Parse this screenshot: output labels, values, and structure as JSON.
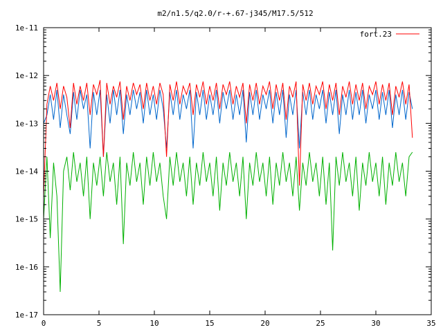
{
  "chart_data": {
    "type": "line",
    "title": "m2/n1.5/q2.0/r-+.67-j345/M17.5/512",
    "xlabel": "",
    "ylabel": "",
    "xlim": [
      0,
      35
    ],
    "ylim": [
      1e-17,
      1e-11
    ],
    "y_scale": "log",
    "x_ticks": [
      0,
      5,
      10,
      15,
      20,
      25,
      30,
      35
    ],
    "x_tick_labels": [
      "0",
      "5",
      "10",
      "15",
      "20",
      "25",
      "30",
      "35"
    ],
    "y_ticks": [
      1e-17,
      1e-16,
      1e-15,
      1e-14,
      1e-13,
      1e-12,
      1e-11
    ],
    "y_tick_labels": [
      "1e-17",
      "1e-16",
      "1e-15",
      "1e-14",
      "1e-13",
      "1e-12",
      "1e-11"
    ],
    "grid": false,
    "legend_position": "top-right",
    "series": [
      {
        "name": "fort.23",
        "color": "#ff0000",
        "x": [
          0.0,
          0.3,
          0.6,
          0.9,
          1.2,
          1.5,
          1.8,
          2.1,
          2.4,
          2.7,
          3.0,
          3.3,
          3.6,
          3.9,
          4.2,
          4.5,
          4.8,
          5.1,
          5.4,
          5.7,
          6.0,
          6.3,
          6.6,
          6.9,
          7.2,
          7.5,
          7.8,
          8.1,
          8.4,
          8.7,
          9.0,
          9.3,
          9.6,
          9.9,
          10.2,
          10.5,
          10.8,
          11.1,
          11.4,
          11.7,
          12.0,
          12.3,
          12.6,
          12.9,
          13.2,
          13.5,
          13.8,
          14.1,
          14.4,
          14.7,
          15.0,
          15.3,
          15.6,
          15.9,
          16.2,
          16.5,
          16.8,
          17.1,
          17.4,
          17.7,
          18.0,
          18.3,
          18.6,
          18.9,
          19.2,
          19.5,
          19.8,
          20.1,
          20.4,
          20.7,
          21.0,
          21.3,
          21.6,
          21.9,
          22.2,
          22.5,
          22.8,
          23.1,
          23.4,
          23.7,
          24.0,
          24.3,
          24.6,
          24.9,
          25.2,
          25.5,
          25.8,
          26.1,
          26.4,
          26.7,
          27.0,
          27.3,
          27.6,
          27.9,
          28.2,
          28.5,
          28.8,
          29.1,
          29.4,
          29.7,
          30.0,
          30.3,
          30.6,
          30.9,
          31.2,
          31.5,
          31.8,
          32.1,
          32.4,
          32.7,
          33.0,
          33.3
        ],
        "y": [
          3e-15,
          2.5e-13,
          6e-13,
          3e-13,
          7e-13,
          2e-13,
          6e-13,
          3.5e-13,
          8e-14,
          7e-13,
          2.5e-13,
          6e-13,
          3e-13,
          7e-13,
          1.5e-13,
          6.5e-13,
          4e-13,
          8e-13,
          2e-14,
          7e-13,
          2.5e-13,
          6e-13,
          3.5e-13,
          7.5e-13,
          1.2e-13,
          6e-13,
          3e-13,
          7e-13,
          4e-13,
          6.5e-13,
          2e-13,
          7e-13,
          3e-13,
          6e-13,
          2.5e-13,
          7e-13,
          4e-13,
          2e-14,
          6.5e-13,
          3e-13,
          7.5e-13,
          2.5e-13,
          6e-13,
          4e-13,
          7e-13,
          1.5e-13,
          6.5e-13,
          3.5e-13,
          7.5e-13,
          2.5e-13,
          6e-13,
          3e-13,
          7e-13,
          2e-13,
          6.5e-13,
          4e-13,
          7.5e-13,
          2.5e-13,
          6e-13,
          3.5e-13,
          7e-13,
          1e-13,
          6.5e-13,
          3e-13,
          7e-13,
          2.5e-13,
          6e-13,
          4e-13,
          7.5e-13,
          2e-13,
          6.5e-13,
          3e-13,
          7e-13,
          1.2e-13,
          6e-13,
          3.5e-13,
          7.5e-13,
          5e-15,
          6.5e-13,
          3e-13,
          7e-13,
          2.5e-13,
          6e-13,
          4e-13,
          7.5e-13,
          2e-13,
          6.5e-13,
          3e-13,
          7e-13,
          1.5e-13,
          6e-13,
          3.5e-13,
          7.5e-13,
          2.5e-13,
          6.5e-13,
          3e-13,
          7e-13,
          2e-13,
          6e-13,
          4e-13,
          7.5e-13,
          2.5e-13,
          6.5e-13,
          3e-13,
          7e-13,
          1.5e-13,
          6e-13,
          3.5e-13,
          7.5e-13,
          2.5e-13,
          6.5e-13,
          5e-14
        ]
      },
      {
        "color": "#0066cc",
        "x": [
          0.0,
          0.3,
          0.6,
          0.9,
          1.2,
          1.5,
          1.8,
          2.1,
          2.4,
          2.7,
          3.0,
          3.3,
          3.6,
          3.9,
          4.2,
          4.5,
          4.8,
          5.1,
          5.4,
          5.7,
          6.0,
          6.3,
          6.6,
          6.9,
          7.2,
          7.5,
          7.8,
          8.1,
          8.4,
          8.7,
          9.0,
          9.3,
          9.6,
          9.9,
          10.2,
          10.5,
          10.8,
          11.1,
          11.4,
          11.7,
          12.0,
          12.3,
          12.6,
          12.9,
          13.2,
          13.5,
          13.8,
          14.1,
          14.4,
          14.7,
          15.0,
          15.3,
          15.6,
          15.9,
          16.2,
          16.5,
          16.8,
          17.1,
          17.4,
          17.7,
          18.0,
          18.3,
          18.6,
          18.9,
          19.2,
          19.5,
          19.8,
          20.1,
          20.4,
          20.7,
          21.0,
          21.3,
          21.6,
          21.9,
          22.2,
          22.5,
          22.8,
          23.1,
          23.4,
          23.7,
          24.0,
          24.3,
          24.6,
          24.9,
          25.2,
          25.5,
          25.8,
          26.1,
          26.4,
          26.7,
          27.0,
          27.3,
          27.6,
          27.9,
          28.2,
          28.5,
          28.8,
          29.1,
          29.4,
          29.7,
          30.0,
          30.3,
          30.6,
          30.9,
          31.2,
          31.5,
          31.8,
          32.1,
          32.4,
          32.7,
          33.0,
          33.3
        ],
        "y": [
          1e-13,
          1.5e-13,
          4e-13,
          1.2e-13,
          5e-13,
          8e-14,
          4e-13,
          1.5e-13,
          6e-14,
          4.5e-13,
          1.2e-13,
          5e-13,
          2e-13,
          4e-13,
          3e-14,
          4.5e-13,
          1.5e-13,
          5e-13,
          2e-14,
          4e-13,
          1e-13,
          5e-13,
          1.5e-13,
          5e-13,
          6e-14,
          4e-13,
          1.5e-13,
          5e-13,
          2e-13,
          4.5e-13,
          1e-13,
          5e-13,
          1.5e-13,
          4e-13,
          1.2e-13,
          5e-13,
          2e-13,
          3e-14,
          4.5e-13,
          1.5e-13,
          5e-13,
          1.2e-13,
          4e-13,
          2e-13,
          5e-13,
          3e-14,
          4.5e-13,
          1.5e-13,
          5e-13,
          1.2e-13,
          4e-13,
          1.5e-13,
          5e-13,
          1e-13,
          4.5e-13,
          2e-13,
          5e-13,
          1.2e-13,
          4e-13,
          1.5e-13,
          5e-13,
          4e-14,
          4.5e-13,
          1.5e-13,
          5e-13,
          1.2e-13,
          4e-13,
          2e-13,
          5e-13,
          1e-13,
          4.5e-13,
          1.5e-13,
          5e-13,
          5e-14,
          4e-13,
          1.5e-13,
          5e-13,
          3e-14,
          4.5e-13,
          1.5e-13,
          5e-13,
          1.2e-13,
          4e-13,
          2e-13,
          5e-13,
          1e-13,
          4.5e-13,
          1.5e-13,
          5e-13,
          6e-14,
          4e-13,
          1.5e-13,
          5e-13,
          1.2e-13,
          4.5e-13,
          1.5e-13,
          5e-13,
          1e-13,
          4e-13,
          2e-13,
          5e-13,
          1.2e-13,
          4.5e-13,
          1.5e-13,
          5e-13,
          8e-14,
          4e-13,
          1.5e-13,
          5e-13,
          1.2e-13,
          4.5e-13,
          2e-13
        ]
      },
      {
        "color": "#00b000",
        "x": [
          0.0,
          0.3,
          0.6,
          0.9,
          1.2,
          1.5,
          1.8,
          2.1,
          2.4,
          2.7,
          3.0,
          3.3,
          3.6,
          3.9,
          4.2,
          4.5,
          4.8,
          5.1,
          5.4,
          5.7,
          6.0,
          6.3,
          6.6,
          6.9,
          7.2,
          7.5,
          7.8,
          8.1,
          8.4,
          8.7,
          9.0,
          9.3,
          9.6,
          9.9,
          10.2,
          10.5,
          10.8,
          11.1,
          11.4,
          11.7,
          12.0,
          12.3,
          12.6,
          12.9,
          13.2,
          13.5,
          13.8,
          14.1,
          14.4,
          14.7,
          15.0,
          15.3,
          15.6,
          15.9,
          16.2,
          16.5,
          16.8,
          17.1,
          17.4,
          17.7,
          18.0,
          18.3,
          18.6,
          18.9,
          19.2,
          19.5,
          19.8,
          20.1,
          20.4,
          20.7,
          21.0,
          21.3,
          21.6,
          21.9,
          22.2,
          22.5,
          22.8,
          23.1,
          23.4,
          23.7,
          24.0,
          24.3,
          24.6,
          24.9,
          25.2,
          25.5,
          25.8,
          26.1,
          26.4,
          26.7,
          27.0,
          27.3,
          27.6,
          27.9,
          28.2,
          28.5,
          28.8,
          29.1,
          29.4,
          29.7,
          30.0,
          30.3,
          30.6,
          30.9,
          31.2,
          31.5,
          31.8,
          32.1,
          32.4,
          32.7,
          33.0,
          33.3
        ],
        "y": [
          1e-15,
          2e-14,
          4e-16,
          1.5e-14,
          3e-15,
          3e-17,
          1e-14,
          2e-14,
          4e-15,
          2.5e-14,
          6e-15,
          1.5e-14,
          3e-15,
          2e-14,
          1e-15,
          1.5e-14,
          5e-15,
          2e-14,
          3e-15,
          2.5e-14,
          6e-15,
          1.5e-14,
          2e-15,
          2e-14,
          3e-16,
          1.5e-14,
          5e-15,
          2.5e-14,
          6e-15,
          1.5e-14,
          2e-15,
          2e-14,
          5e-15,
          2.5e-14,
          6e-15,
          1.5e-14,
          3e-15,
          1e-15,
          2e-14,
          5e-15,
          2.5e-14,
          6e-15,
          1.5e-14,
          3e-15,
          2e-14,
          2e-15,
          1.5e-14,
          5e-15,
          2.5e-14,
          6e-15,
          1.5e-14,
          3e-15,
          2e-14,
          1.5e-15,
          1.5e-14,
          5e-15,
          2.5e-14,
          6e-15,
          1.5e-14,
          3e-15,
          2e-14,
          1e-15,
          1.5e-14,
          5e-15,
          2.5e-14,
          6e-15,
          1.5e-14,
          3e-15,
          2e-14,
          2e-15,
          1.5e-14,
          5e-15,
          2.5e-14,
          6e-15,
          1.5e-14,
          3e-15,
          2e-14,
          1.5e-15,
          1.5e-14,
          5e-15,
          2.5e-14,
          6e-15,
          1.5e-14,
          3e-15,
          2e-14,
          2e-15,
          1.5e-14,
          2.2e-16,
          2e-14,
          5e-15,
          2.5e-14,
          6e-15,
          1.5e-14,
          3e-15,
          2e-14,
          1.5e-15,
          1.5e-14,
          5e-15,
          2.5e-14,
          6e-15,
          1.5e-14,
          3e-15,
          2e-14,
          2e-15,
          1.5e-14,
          5e-15,
          2.5e-14,
          6e-15,
          1.5e-14,
          3e-15,
          2e-14,
          2.5e-14
        ]
      }
    ]
  }
}
